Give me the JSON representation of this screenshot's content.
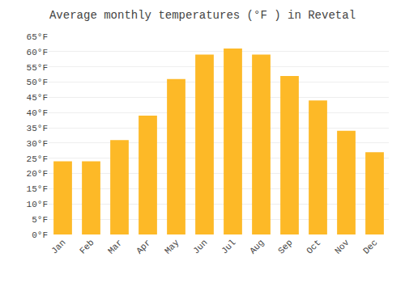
{
  "chart_data": {
    "type": "bar",
    "title": "Average monthly temperatures (°F ) in Revetal",
    "categories": [
      "Jan",
      "Feb",
      "Mar",
      "Apr",
      "May",
      "Jun",
      "Jul",
      "Aug",
      "Sep",
      "Oct",
      "Nov",
      "Dec"
    ],
    "values": [
      24,
      24,
      31,
      39,
      51,
      59,
      61,
      59,
      52,
      44,
      34,
      27
    ],
    "color": "#FDB927",
    "ylim": [
      0,
      65
    ],
    "yticks": [
      {
        "value": 0,
        "label": "0°F"
      },
      {
        "value": 5,
        "label": "5°F"
      },
      {
        "value": 10,
        "label": "10°F"
      },
      {
        "value": 15,
        "label": "15°F"
      },
      {
        "value": 20,
        "label": "20°F"
      },
      {
        "value": 25,
        "label": "25°F"
      },
      {
        "value": 30,
        "label": "30°F"
      },
      {
        "value": 35,
        "label": "35°F"
      },
      {
        "value": 40,
        "label": "40°F"
      },
      {
        "value": 45,
        "label": "45°F"
      },
      {
        "value": 50,
        "label": "50°F"
      },
      {
        "value": 55,
        "label": "55°F"
      },
      {
        "value": 60,
        "label": "60°F"
      },
      {
        "value": 65,
        "label": "65°F"
      }
    ],
    "grid": true
  }
}
